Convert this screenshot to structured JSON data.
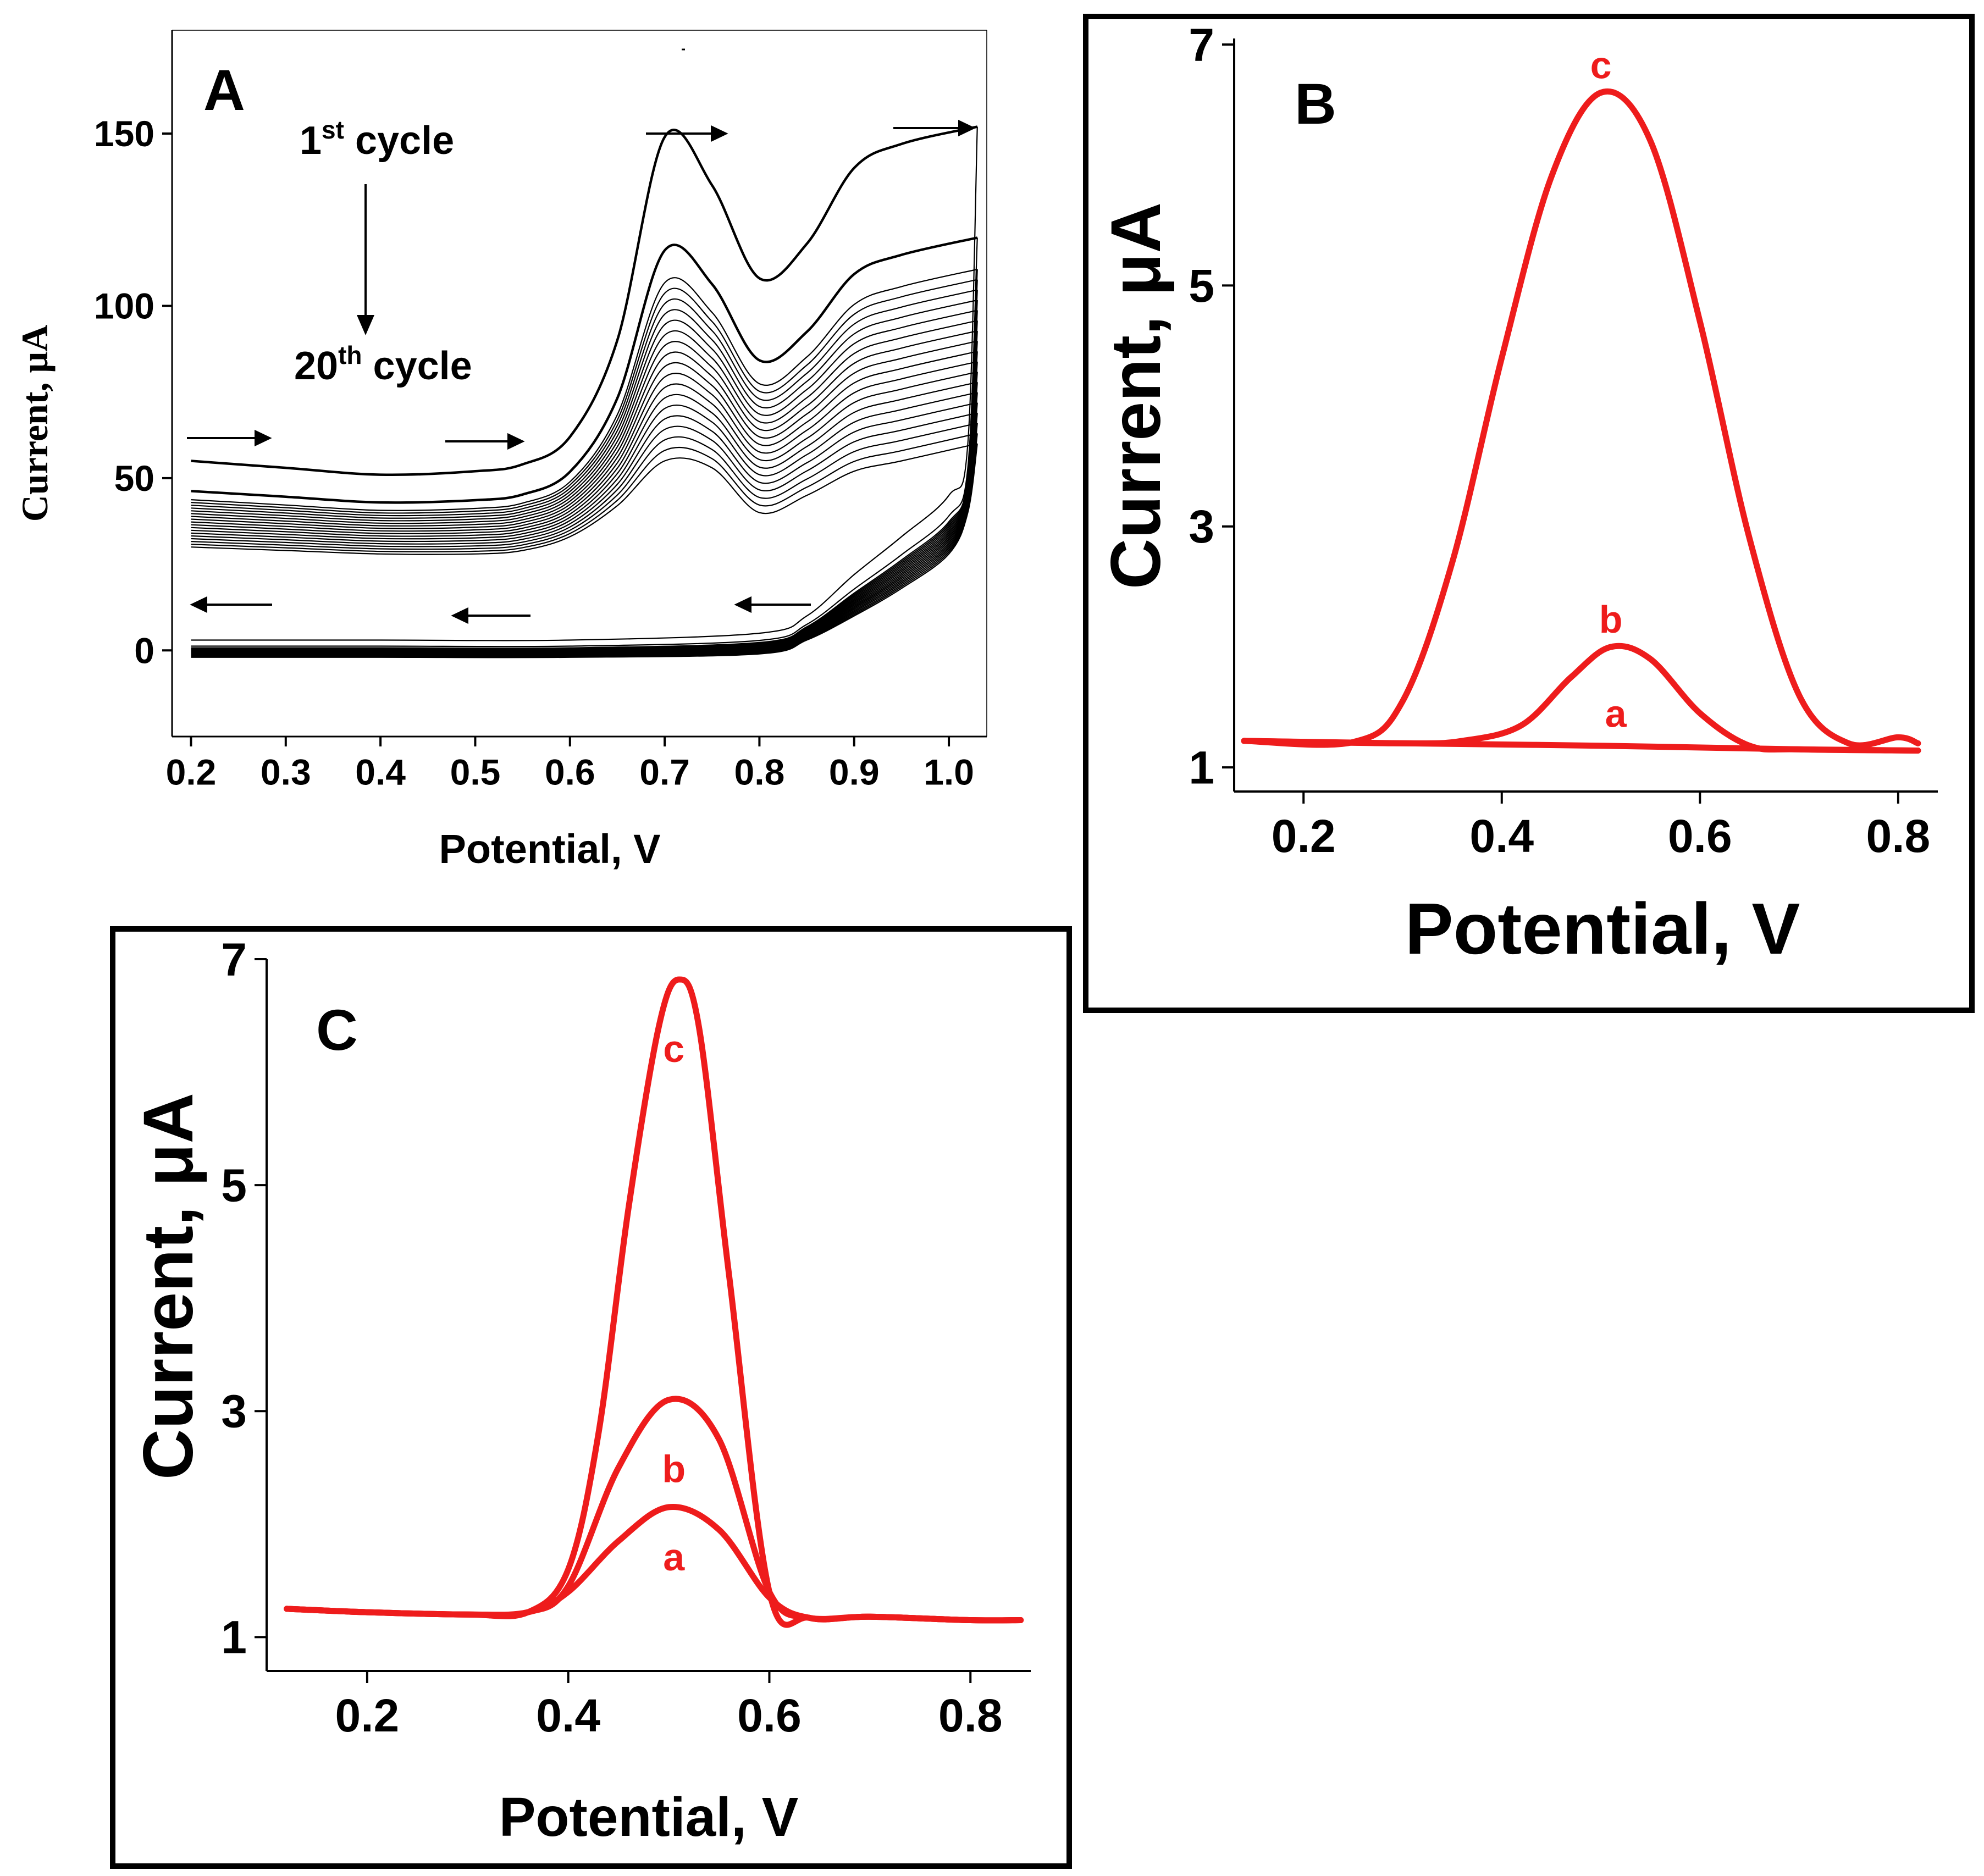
{
  "chart_data": [
    {
      "panel": "A",
      "type": "line",
      "xlabel": "Potential, V",
      "ylabel": "Current, μA",
      "xlim": [
        0.18,
        1.04
      ],
      "ylim": [
        -25,
        180
      ],
      "xticks": [
        "0.2",
        "0.3",
        "0.4",
        "0.5",
        "0.6",
        "0.7",
        "0.8",
        "0.9",
        "1.0"
      ],
      "yticks": [
        "0",
        "50",
        "100",
        "150"
      ],
      "annotations": {
        "first": "1",
        "first_sup": "st",
        "first_rest": " cycle",
        "last": "20",
        "last_sup": "th",
        "last_rest": " cycle"
      },
      "cycles": 20,
      "first_cycle": {
        "forward": [
          [
            0.2,
            55
          ],
          [
            0.3,
            53
          ],
          [
            0.4,
            51
          ],
          [
            0.5,
            52
          ],
          [
            0.55,
            54
          ],
          [
            0.6,
            62
          ],
          [
            0.65,
            90
          ],
          [
            0.7,
            149
          ],
          [
            0.75,
            135
          ],
          [
            0.8,
            108
          ],
          [
            0.85,
            118
          ],
          [
            0.9,
            140
          ],
          [
            0.95,
            147
          ],
          [
            1.03,
            152
          ]
        ],
        "reverse": [
          [
            1.03,
            152
          ],
          [
            1.02,
            60
          ],
          [
            1.0,
            45
          ],
          [
            0.95,
            33
          ],
          [
            0.9,
            22
          ],
          [
            0.85,
            10
          ],
          [
            0.8,
            5
          ],
          [
            0.6,
            3
          ],
          [
            0.4,
            3
          ],
          [
            0.2,
            3
          ]
        ]
      },
      "last_cycle": {
        "forward": [
          [
            0.2,
            30
          ],
          [
            0.3,
            29
          ],
          [
            0.4,
            28
          ],
          [
            0.5,
            28
          ],
          [
            0.55,
            29
          ],
          [
            0.6,
            33
          ],
          [
            0.65,
            42
          ],
          [
            0.7,
            55
          ],
          [
            0.75,
            53
          ],
          [
            0.8,
            40
          ],
          [
            0.85,
            45
          ],
          [
            0.9,
            52
          ],
          [
            0.95,
            55
          ],
          [
            1.03,
            60
          ]
        ],
        "reverse": [
          [
            1.03,
            60
          ],
          [
            1.02,
            40
          ],
          [
            1.0,
            28
          ],
          [
            0.95,
            18
          ],
          [
            0.9,
            10
          ],
          [
            0.85,
            3
          ],
          [
            0.8,
            -1
          ],
          [
            0.6,
            -2
          ],
          [
            0.4,
            -2
          ],
          [
            0.2,
            -2
          ]
        ]
      }
    },
    {
      "panel": "B",
      "type": "line",
      "xlabel": "Potential, V",
      "ylabel": "Current, μA",
      "xlim": [
        0.13,
        0.84
      ],
      "ylim": [
        0.8,
        7.05
      ],
      "xticks": [
        "0.2",
        "0.4",
        "0.6",
        "0.8"
      ],
      "yticks": [
        "1",
        "3",
        "5",
        "7"
      ],
      "series": [
        {
          "name": "a",
          "x": [
            0.14,
            0.3,
            0.5,
            0.7,
            0.82
          ],
          "y": [
            1.22,
            1.2,
            1.18,
            1.15,
            1.14
          ]
        },
        {
          "name": "b",
          "x": [
            0.14,
            0.3,
            0.36,
            0.42,
            0.47,
            0.51,
            0.55,
            0.6,
            0.65,
            0.7,
            0.82
          ],
          "y": [
            1.22,
            1.2,
            1.22,
            1.35,
            1.75,
            2.0,
            1.9,
            1.45,
            1.18,
            1.15,
            1.14
          ]
        },
        {
          "name": "c",
          "x": [
            0.14,
            0.25,
            0.3,
            0.35,
            0.4,
            0.45,
            0.5,
            0.55,
            0.6,
            0.65,
            0.7,
            0.75,
            0.8,
            0.82
          ],
          "y": [
            1.22,
            1.21,
            1.55,
            2.7,
            4.4,
            5.9,
            6.6,
            6.2,
            4.7,
            2.9,
            1.6,
            1.2,
            1.25,
            1.2
          ]
        }
      ]
    },
    {
      "panel": "C",
      "type": "line",
      "xlabel": "Potential, V",
      "ylabel": "Current, μA",
      "xlim": [
        0.1,
        0.86
      ],
      "ylim": [
        0.7,
        7.0
      ],
      "xticks": [
        "0.2",
        "0.4",
        "0.6",
        "0.8"
      ],
      "yticks": [
        "1",
        "3",
        "5",
        "7"
      ],
      "series": [
        {
          "name": "a",
          "x": [
            0.12,
            0.2,
            0.3,
            0.36,
            0.4,
            0.45,
            0.5,
            0.55,
            0.6,
            0.64,
            0.7,
            0.8,
            0.85
          ],
          "y": [
            1.25,
            1.22,
            1.2,
            1.22,
            1.4,
            1.85,
            2.15,
            1.95,
            1.35,
            1.17,
            1.18,
            1.15,
            1.15
          ]
        },
        {
          "name": "b",
          "x": [
            0.12,
            0.2,
            0.3,
            0.36,
            0.4,
            0.45,
            0.5,
            0.55,
            0.6,
            0.64,
            0.7,
            0.8,
            0.85
          ],
          "y": [
            1.25,
            1.22,
            1.2,
            1.22,
            1.45,
            2.5,
            3.1,
            2.75,
            1.4,
            1.17,
            1.18,
            1.15,
            1.15
          ]
        },
        {
          "name": "c",
          "x": [
            0.12,
            0.2,
            0.3,
            0.36,
            0.4,
            0.43,
            0.46,
            0.49,
            0.51,
            0.53,
            0.56,
            0.6,
            0.64,
            0.7,
            0.8,
            0.85
          ],
          "y": [
            1.25,
            1.22,
            1.2,
            1.22,
            1.6,
            2.8,
            4.8,
            6.4,
            6.82,
            6.4,
            4.2,
            1.4,
            1.17,
            1.18,
            1.15,
            1.15
          ]
        }
      ]
    }
  ],
  "colors": {
    "series": "#ee1c1c",
    "frame": "#000000",
    "cycles": "#000000"
  }
}
